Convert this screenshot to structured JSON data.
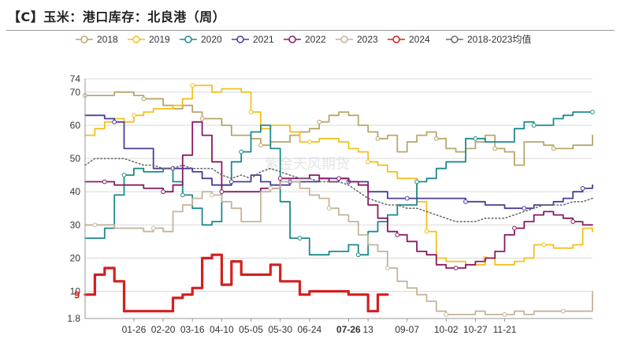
{
  "title": "【C】玉米：港口库存：北良港（周）",
  "watermark": "紫金天风期货",
  "chart_data": {
    "type": "line",
    "y_ticks": [
      "1.8",
      "10",
      "20",
      "30",
      "40",
      "50",
      "60",
      "70",
      "74"
    ],
    "ylim": [
      1.8,
      74
    ],
    "x_ticks": [
      {
        "label": "01-26",
        "t": 6
      },
      {
        "label": "02-20",
        "t": 9
      },
      {
        "label": "03-16",
        "t": 12
      },
      {
        "label": "04-10",
        "t": 15
      },
      {
        "label": "05-05",
        "t": 18
      },
      {
        "label": "05-30",
        "t": 21
      },
      {
        "label": "06-24",
        "t": 24
      },
      {
        "label": "07-26",
        "t": 28,
        "highlight": true
      },
      {
        "label": "13",
        "t": 30
      },
      {
        "label": "09-07",
        "t": 34
      },
      {
        "label": "10-02",
        "t": 38
      },
      {
        "label": "10-27",
        "t": 41
      },
      {
        "label": "11-21",
        "t": 44
      }
    ],
    "t_range": [
      1,
      53
    ],
    "end_label": {
      "series": "2024",
      "value": 9
    },
    "series": [
      {
        "name": "2018",
        "color": "#b8a66a",
        "width": 1.8,
        "style": "step",
        "values": [
          69,
          69,
          69,
          70,
          70,
          69,
          68,
          68,
          66,
          65,
          66,
          64,
          62,
          62,
          60,
          57,
          57,
          56,
          54,
          55,
          55,
          57,
          58,
          59,
          61,
          63,
          64,
          63,
          60,
          58,
          56,
          57,
          52,
          55,
          57,
          58,
          56,
          53,
          52,
          53,
          55,
          57,
          53,
          52,
          48,
          55,
          55,
          54,
          53,
          53,
          54,
          54,
          57
        ]
      },
      {
        "name": "2019",
        "color": "#f3c01e",
        "width": 1.8,
        "style": "step",
        "values": [
          57,
          59,
          61,
          62,
          61,
          63,
          64,
          65,
          65,
          66,
          68,
          72,
          72,
          70,
          71,
          71,
          70,
          64,
          59,
          60,
          60,
          58,
          55,
          55,
          56,
          56,
          55,
          53,
          52,
          49,
          48,
          46,
          44,
          44,
          37,
          28,
          20,
          19,
          19,
          18,
          18,
          20,
          18,
          18,
          19,
          20,
          24,
          24,
          23,
          23,
          24,
          29,
          28
        ]
      },
      {
        "name": "2020",
        "color": "#1d8a8a",
        "width": 1.8,
        "style": "step",
        "values": [
          26,
          26,
          29,
          39,
          45,
          47,
          46,
          46,
          47,
          43,
          39,
          35,
          30,
          31,
          42,
          49,
          52,
          58,
          60,
          53,
          37,
          26,
          26,
          21,
          21,
          22,
          22,
          24,
          21,
          28,
          31,
          33,
          36,
          36,
          43,
          44,
          47,
          49,
          49,
          56,
          56,
          55,
          55,
          55,
          59,
          61,
          60,
          60,
          62,
          63,
          64,
          64,
          64
        ]
      },
      {
        "name": "2021",
        "color": "#4a3d9a",
        "width": 1.8,
        "style": "step",
        "values": [
          63,
          63,
          62,
          61,
          53,
          53,
          53,
          47,
          47,
          47,
          47,
          46,
          44,
          42,
          42,
          43,
          43,
          45,
          43,
          42,
          42,
          43,
          43,
          43,
          44,
          44,
          44,
          43,
          43,
          40,
          40,
          38,
          38,
          38,
          38,
          38,
          38,
          38,
          38,
          37,
          37,
          36,
          36,
          35,
          35,
          35,
          36,
          36,
          37,
          38,
          40,
          41,
          42
        ]
      },
      {
        "name": "2022",
        "color": "#8a1a62",
        "width": 1.8,
        "style": "step",
        "values": [
          43,
          43,
          43,
          42,
          42,
          42,
          41,
          41,
          40,
          42,
          51,
          61,
          57,
          49,
          40,
          40,
          40,
          40,
          41,
          41,
          44,
          44,
          44,
          45,
          44,
          43,
          44,
          43,
          42,
          36,
          32,
          28,
          27,
          25,
          22,
          21,
          18,
          17,
          17,
          18,
          19,
          20,
          22,
          27,
          29,
          31,
          33,
          34,
          33,
          32,
          31,
          30,
          30
        ]
      },
      {
        "name": "2023",
        "color": "#c4b49c",
        "width": 1.8,
        "style": "step",
        "values": [
          30,
          30,
          30,
          29,
          29,
          29,
          28,
          29,
          28,
          34,
          36,
          38,
          40,
          39,
          37,
          35,
          31,
          31,
          40,
          41,
          43,
          43,
          41,
          39,
          38,
          35,
          33,
          31,
          27,
          24,
          22,
          17,
          13,
          11,
          9,
          7,
          4,
          3,
          3,
          3,
          4,
          3,
          3,
          3,
          4,
          3,
          4,
          4,
          4,
          4,
          4,
          4,
          10
        ]
      },
      {
        "name": "2024",
        "color": "#d42020",
        "width": 3.2,
        "style": "step",
        "values": [
          9,
          15,
          17,
          13,
          4,
          4,
          4,
          4,
          4,
          8,
          9,
          11,
          20,
          21,
          12,
          19,
          15,
          15,
          15,
          18,
          13,
          13,
          9,
          10,
          10,
          10,
          10,
          9,
          9,
          4,
          9,
          9
        ]
      },
      {
        "name": "2018-2023均值",
        "color": "#6b6b6b",
        "width": 1.6,
        "style": "dotted",
        "values": [
          48,
          50,
          50,
          50,
          50,
          49,
          48,
          48,
          47,
          47,
          48,
          47,
          47,
          47,
          45,
          44,
          45,
          44,
          46,
          47,
          46,
          45,
          44,
          44,
          43,
          43,
          43,
          42,
          40,
          38,
          37,
          36,
          36,
          35,
          35,
          34,
          33,
          32,
          31,
          31,
          31,
          32,
          32,
          32,
          33,
          34,
          35,
          36,
          36,
          36,
          37,
          37,
          38
        ]
      }
    ]
  }
}
